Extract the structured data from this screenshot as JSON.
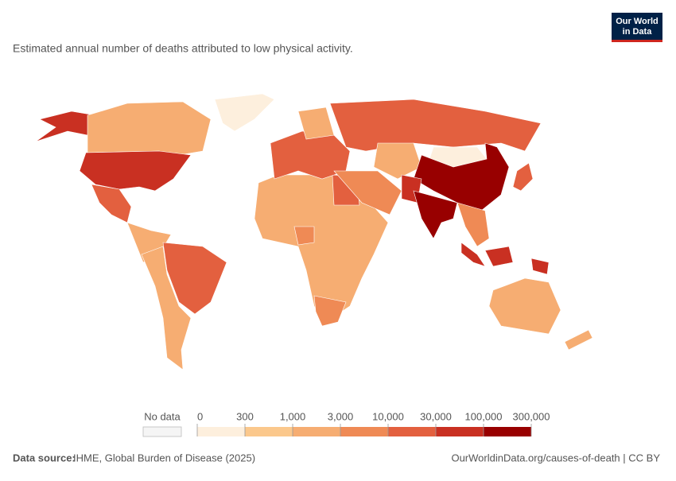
{
  "header": {
    "title": "Estimated annual number of deaths attributed to low physical activity.",
    "logo": [
      "Our World",
      "in Data"
    ]
  },
  "legend": {
    "no_data": "No data",
    "ticks": [
      0,
      300,
      {
        "value": 1000,
        "label": "1,000"
      },
      {
        "value": 3000,
        "label": "3,000"
      },
      {
        "value": 10000,
        "label": "10,000"
      },
      {
        "value": 30000,
        "label": "30,000"
      },
      {
        "value": 100000,
        "label": "100,000"
      },
      {
        "value": 300000,
        "label": "300,000"
      }
    ],
    "colors": [
      "#fdefdd",
      "#fbc88c",
      "#f6ad72",
      "#ef8a55",
      "#e3603f",
      "#c93022",
      "#980000"
    ]
  },
  "footer": {
    "source_label": "Data source:",
    "source": "IHME, Global Burden of Disease (2025)",
    "url": "OurWorldinData.org/causes-of-death | CC BY"
  }
}
